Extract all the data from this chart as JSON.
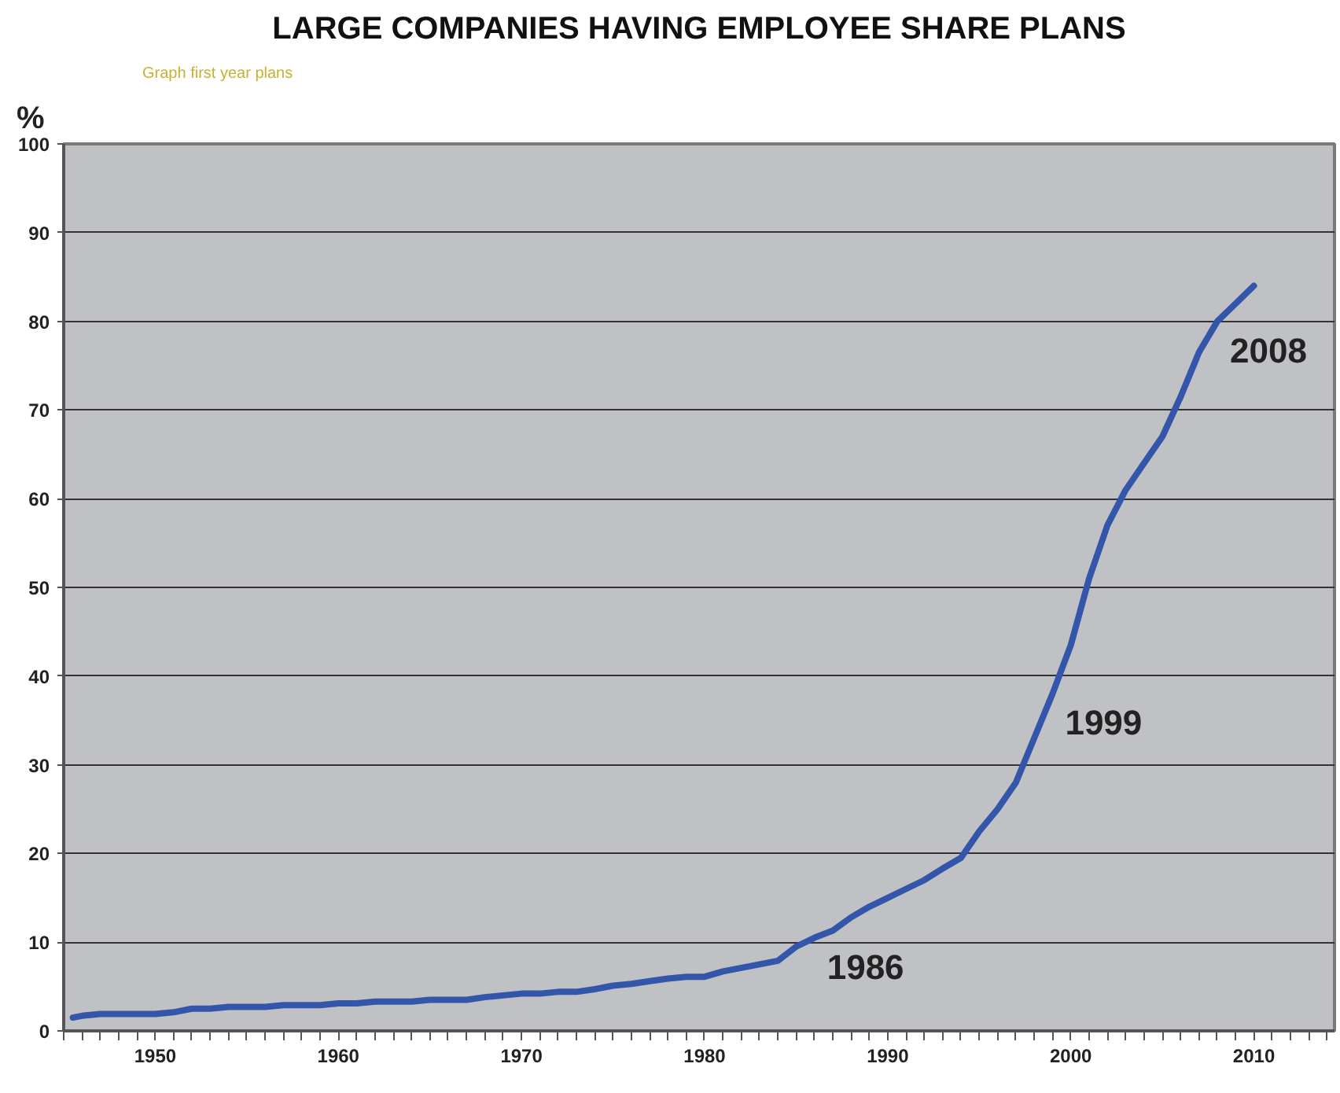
{
  "chart_data": {
    "type": "line",
    "title": "LARGE COMPANIES HAVING EMPLOYEE SHARE PLANS",
    "ylabel": "%",
    "x": [
      1945.5,
      1946,
      1947,
      1948,
      1949,
      1950,
      1951,
      1952,
      1953,
      1954,
      1955,
      1956,
      1957,
      1958,
      1959,
      1960,
      1961,
      1962,
      1963,
      1964,
      1965,
      1966,
      1967,
      1968,
      1969,
      1970,
      1971,
      1972,
      1973,
      1974,
      1975,
      1976,
      1977,
      1978,
      1979,
      1980,
      1981,
      1982,
      1983,
      1984,
      1985,
      1986,
      1987,
      1988,
      1989,
      1990,
      1991,
      1992,
      1993,
      1994,
      1995,
      1996,
      1997,
      1998,
      1999,
      2000,
      2001,
      2002,
      2003,
      2004,
      2005,
      2006,
      2007,
      2008,
      2009,
      2010
    ],
    "series": [
      {
        "color": "#3355aa",
        "values": [
          1.5,
          1.7,
          1.9,
          1.9,
          1.9,
          1.9,
          2.1,
          2.5,
          2.5,
          2.7,
          2.7,
          2.7,
          2.9,
          2.9,
          2.9,
          3.1,
          3.1,
          3.3,
          3.3,
          3.3,
          3.5,
          3.5,
          3.5,
          3.8,
          4.0,
          4.2,
          4.2,
          4.4,
          4.4,
          4.7,
          5.1,
          5.3,
          5.6,
          5.9,
          6.1,
          6.1,
          6.7,
          7.1,
          7.5,
          7.9,
          9.5,
          10.5,
          11.3,
          12.8,
          14,
          15,
          16,
          17,
          18.3,
          19.5,
          22.5,
          25,
          28,
          33,
          38,
          43.5,
          51,
          57,
          61,
          64,
          67,
          71.5,
          76.5,
          80,
          82,
          84
        ]
      }
    ],
    "xlim": [
      1945,
      2014.4
    ],
    "ylim": [
      0,
      100
    ],
    "xticks": [
      {
        "value": 1945,
        "label": null
      },
      {
        "value": 1946,
        "label": null
      },
      {
        "value": 1947,
        "label": null
      },
      {
        "value": 1948,
        "label": null
      },
      {
        "value": 1949,
        "label": null
      },
      1950,
      {
        "value": 1951,
        "label": null
      },
      {
        "value": 1952,
        "label": null
      },
      {
        "value": 1953,
        "label": null
      },
      {
        "value": 1954,
        "label": null
      },
      {
        "value": 1955,
        "label": null
      },
      {
        "value": 1956,
        "label": null
      },
      {
        "value": 1957,
        "label": null
      },
      {
        "value": 1958,
        "label": null
      },
      {
        "value": 1959,
        "label": null
      },
      1960,
      {
        "value": 1961,
        "label": null
      },
      {
        "value": 1962,
        "label": null
      },
      {
        "value": 1963,
        "label": null
      },
      {
        "value": 1964,
        "label": null
      },
      {
        "value": 1965,
        "label": null
      },
      {
        "value": 1966,
        "label": null
      },
      {
        "value": 1967,
        "label": null
      },
      {
        "value": 1968,
        "label": null
      },
      {
        "value": 1969,
        "label": null
      },
      1970,
      {
        "value": 1971,
        "label": null
      },
      {
        "value": 1972,
        "label": null
      },
      {
        "value": 1973,
        "label": null
      },
      {
        "value": 1974,
        "label": null
      },
      {
        "value": 1975,
        "label": null
      },
      {
        "value": 1976,
        "label": null
      },
      {
        "value": 1977,
        "label": null
      },
      {
        "value": 1978,
        "label": null
      },
      {
        "value": 1979,
        "label": null
      },
      1980,
      {
        "value": 1981,
        "label": null
      },
      {
        "value": 1982,
        "label": null
      },
      {
        "value": 1983,
        "label": null
      },
      {
        "value": 1984,
        "label": null
      },
      {
        "value": 1985,
        "label": null
      },
      {
        "value": 1986,
        "label": null
      },
      {
        "value": 1987,
        "label": null
      },
      {
        "value": 1988,
        "label": null
      },
      {
        "value": 1989,
        "label": null
      },
      1990,
      {
        "value": 1991,
        "label": null
      },
      {
        "value": 1992,
        "label": null
      },
      {
        "value": 1993,
        "label": null
      },
      {
        "value": 1994,
        "label": null
      },
      {
        "value": 1995,
        "label": null
      },
      {
        "value": 1996,
        "label": null
      },
      {
        "value": 1997,
        "label": null
      },
      {
        "value": 1998,
        "label": null
      },
      {
        "value": 1999,
        "label": null
      },
      2000,
      {
        "value": 2001,
        "label": null
      },
      {
        "value": 2002,
        "label": null
      },
      {
        "value": 2003,
        "label": null
      },
      {
        "value": 2004,
        "label": null
      },
      {
        "value": 2005,
        "label": null
      },
      {
        "value": 2006,
        "label": null
      },
      {
        "value": 2007,
        "label": null
      },
      {
        "value": 2008,
        "label": null
      },
      {
        "value": 2009,
        "label": null
      },
      2010,
      {
        "value": 2011,
        "label": null
      },
      {
        "value": 2012,
        "label": null
      },
      {
        "value": 2013,
        "label": null
      },
      {
        "value": 2014,
        "label": null
      }
    ],
    "yticks": [
      0,
      10,
      20,
      30,
      40,
      50,
      60,
      70,
      80,
      90,
      100
    ],
    "grid": "y",
    "line_style": "solid",
    "annotations": [
      "Graph first year plans",
      {
        "text": "1986",
        "x": 1986,
        "y": 10.5
      },
      {
        "text": "1999",
        "x": 1999,
        "y": 38
      },
      {
        "text": "2008",
        "x": 2008,
        "y": 80
      }
    ]
  }
}
